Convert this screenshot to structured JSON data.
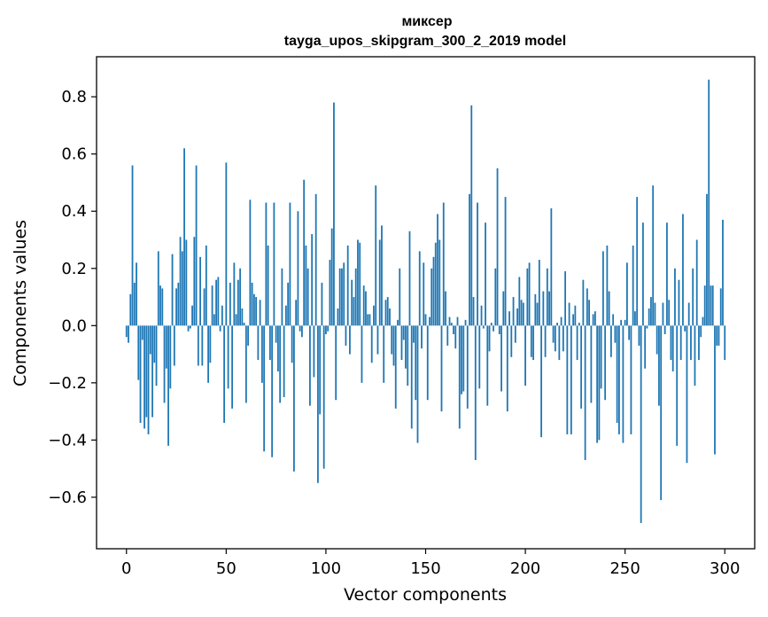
{
  "chart_data": {
    "type": "bar",
    "title_line1": "миксер",
    "title_line2": "tayga_upos_skipgram_300_2_2019 model",
    "xlabel": "Vector components",
    "ylabel": "Components values",
    "xlim": [
      -15,
      315
    ],
    "ylim": [
      -0.78,
      0.94
    ],
    "xticks": [
      0,
      50,
      100,
      150,
      200,
      250,
      300
    ],
    "xtick_labels": [
      "0",
      "50",
      "100",
      "150",
      "200",
      "250",
      "300"
    ],
    "yticks": [
      -0.6,
      -0.4,
      -0.2,
      0.0,
      0.2,
      0.4,
      0.6,
      0.8
    ],
    "ytick_labels": [
      "−0.6",
      "−0.4",
      "−0.2",
      "0.0",
      "0.2",
      "0.4",
      "0.6",
      "0.8"
    ],
    "color": "#1f77b4",
    "values": [
      -0.04,
      -0.06,
      0.11,
      0.56,
      0.15,
      0.22,
      -0.19,
      -0.34,
      -0.05,
      -0.36,
      -0.32,
      -0.38,
      -0.1,
      -0.32,
      -0.13,
      -0.21,
      0.26,
      0.14,
      0.13,
      -0.27,
      -0.15,
      -0.42,
      -0.22,
      0.25,
      -0.14,
      0.13,
      0.15,
      0.31,
      0.26,
      0.62,
      0.3,
      -0.02,
      -0.01,
      0.07,
      0.31,
      0.56,
      -0.14,
      0.24,
      -0.14,
      0.13,
      0.28,
      -0.2,
      -0.13,
      0.14,
      0.04,
      0.16,
      0.17,
      -0.02,
      0.07,
      -0.34,
      0.57,
      -0.22,
      0.15,
      -0.29,
      0.22,
      0.04,
      0.16,
      0.2,
      0.06,
      0.01,
      -0.27,
      -0.07,
      0.44,
      0.15,
      0.11,
      0.1,
      -0.12,
      0.09,
      -0.2,
      -0.44,
      0.43,
      0.28,
      -0.12,
      -0.46,
      0.43,
      -0.06,
      -0.16,
      -0.27,
      0.2,
      -0.25,
      0.07,
      0.15,
      0.43,
      -0.13,
      -0.51,
      0.09,
      0.4,
      -0.02,
      -0.04,
      0.51,
      0.28,
      0.2,
      -0.28,
      0.32,
      -0.18,
      0.46,
      -0.55,
      -0.31,
      0.15,
      -0.5,
      -0.03,
      -0.02,
      0.23,
      0.34,
      0.78,
      -0.26,
      0.06,
      0.2,
      0.2,
      0.22,
      -0.07,
      0.28,
      -0.1,
      0.16,
      0.1,
      0.2,
      0.3,
      0.29,
      -0.2,
      0.14,
      0.12,
      0.04,
      0.04,
      -0.13,
      0.07,
      0.49,
      -0.1,
      0.3,
      0.35,
      -0.2,
      0.09,
      0.1,
      0.06,
      -0.1,
      -0.14,
      -0.29,
      0.02,
      0.2,
      -0.12,
      -0.05,
      -0.15,
      -0.21,
      0.33,
      -0.36,
      -0.06,
      -0.26,
      -0.41,
      0.26,
      -0.08,
      0.22,
      0.04,
      -0.26,
      0.03,
      0.2,
      0.24,
      0.29,
      0.39,
      0.3,
      -0.3,
      0.43,
      0.12,
      -0.07,
      0.03,
      0.01,
      -0.03,
      -0.08,
      0.03,
      -0.36,
      -0.24,
      -0.23,
      0.02,
      -0.29,
      0.46,
      0.77,
      0.1,
      -0.47,
      0.43,
      -0.22,
      0.07,
      -0.01,
      0.36,
      -0.28,
      -0.09,
      0.01,
      -0.02,
      0.2,
      0.55,
      -0.03,
      -0.23,
      0.12,
      0.45,
      -0.3,
      0.05,
      -0.11,
      0.1,
      -0.06,
      0.06,
      0.17,
      0.09,
      0.08,
      -0.21,
      0.2,
      0.22,
      -0.11,
      -0.12,
      0.11,
      0.08,
      0.23,
      -0.39,
      0.12,
      -0.11,
      0.2,
      0.12,
      0.41,
      -0.06,
      -0.09,
      0.01,
      -0.12,
      0.03,
      -0.09,
      0.19,
      -0.38,
      0.08,
      -0.38,
      0.04,
      0.07,
      -0.12,
      0.01,
      -0.29,
      0.16,
      -0.47,
      0.13,
      0.09,
      -0.27,
      0.04,
      0.05,
      -0.41,
      -0.4,
      -0.22,
      0.26,
      -0.26,
      0.28,
      0.12,
      -0.11,
      0.04,
      -0.06,
      -0.34,
      -0.38,
      0.02,
      -0.41,
      0.02,
      0.22,
      -0.05,
      -0.38,
      0.28,
      0.05,
      0.45,
      -0.07,
      -0.69,
      0.36,
      -0.15,
      -0.01,
      0.06,
      0.1,
      0.49,
      0.08,
      -0.1,
      -0.28,
      -0.61,
      0.08,
      -0.03,
      0.36,
      0.09,
      -0.12,
      -0.16,
      0.2,
      -0.42,
      0.16,
      -0.12,
      0.39,
      -0.02,
      -0.48,
      0.08,
      -0.12,
      0.2,
      -0.21,
      0.3,
      -0.12,
      -0.04,
      0.03,
      0.14,
      0.46,
      0.86,
      0.14,
      0.14,
      -0.45,
      -0.07,
      -0.07,
      0.13,
      0.37,
      -0.12
    ]
  }
}
